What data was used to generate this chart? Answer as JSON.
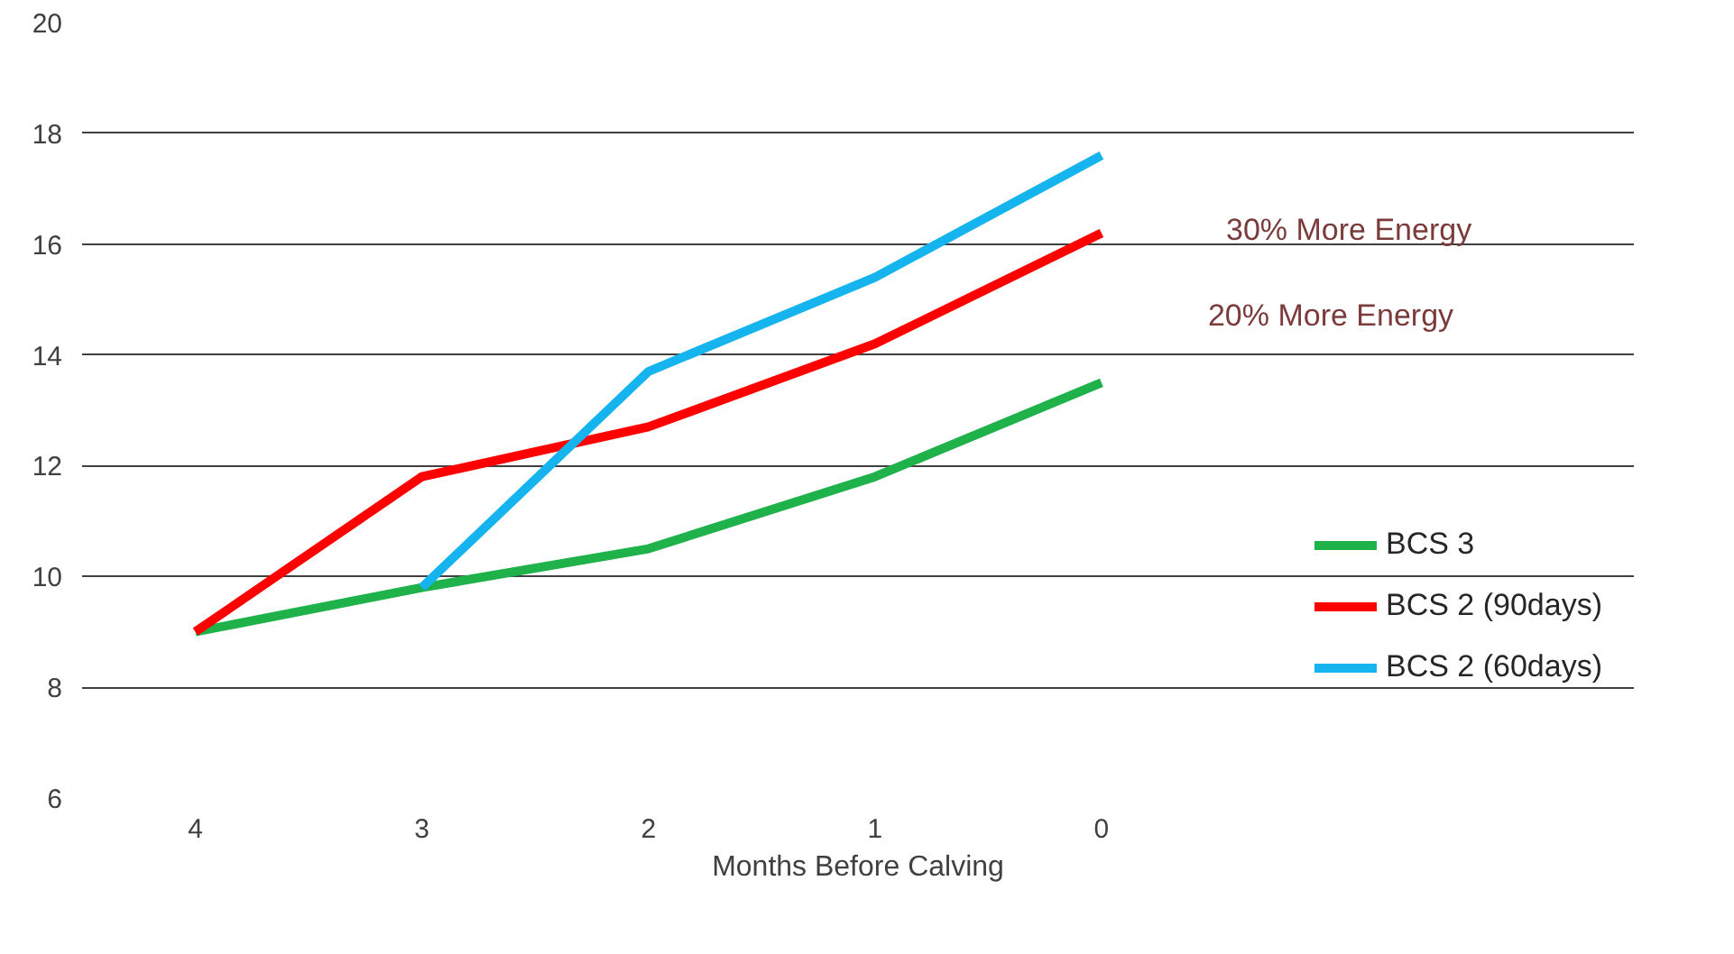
{
  "chart_data": {
    "type": "line",
    "xlabel": "Months Before Calving",
    "categories": [
      "4",
      "3",
      "2",
      "1",
      "0"
    ],
    "series": [
      {
        "name": "BCS 3",
        "color": "#1fb24a",
        "values": [
          9.0,
          9.8,
          10.5,
          11.8,
          13.5
        ]
      },
      {
        "name": "BCS 2 (90days)",
        "color": "#fe0000",
        "values": [
          9.0,
          11.8,
          12.7,
          14.2,
          16.2
        ]
      },
      {
        "name": "BCS 2 (60days)",
        "color": "#16b4ee",
        "values": [
          null,
          9.8,
          13.7,
          15.4,
          17.6
        ]
      }
    ],
    "ylim": [
      6,
      20
    ],
    "yticks": [
      6,
      8,
      10,
      12,
      14,
      16,
      18,
      20
    ],
    "grid": "y",
    "legend": "right",
    "marker": "none",
    "line_style": "solid",
    "annotations": [
      "30% More Energy",
      "20% More Energy"
    ]
  }
}
